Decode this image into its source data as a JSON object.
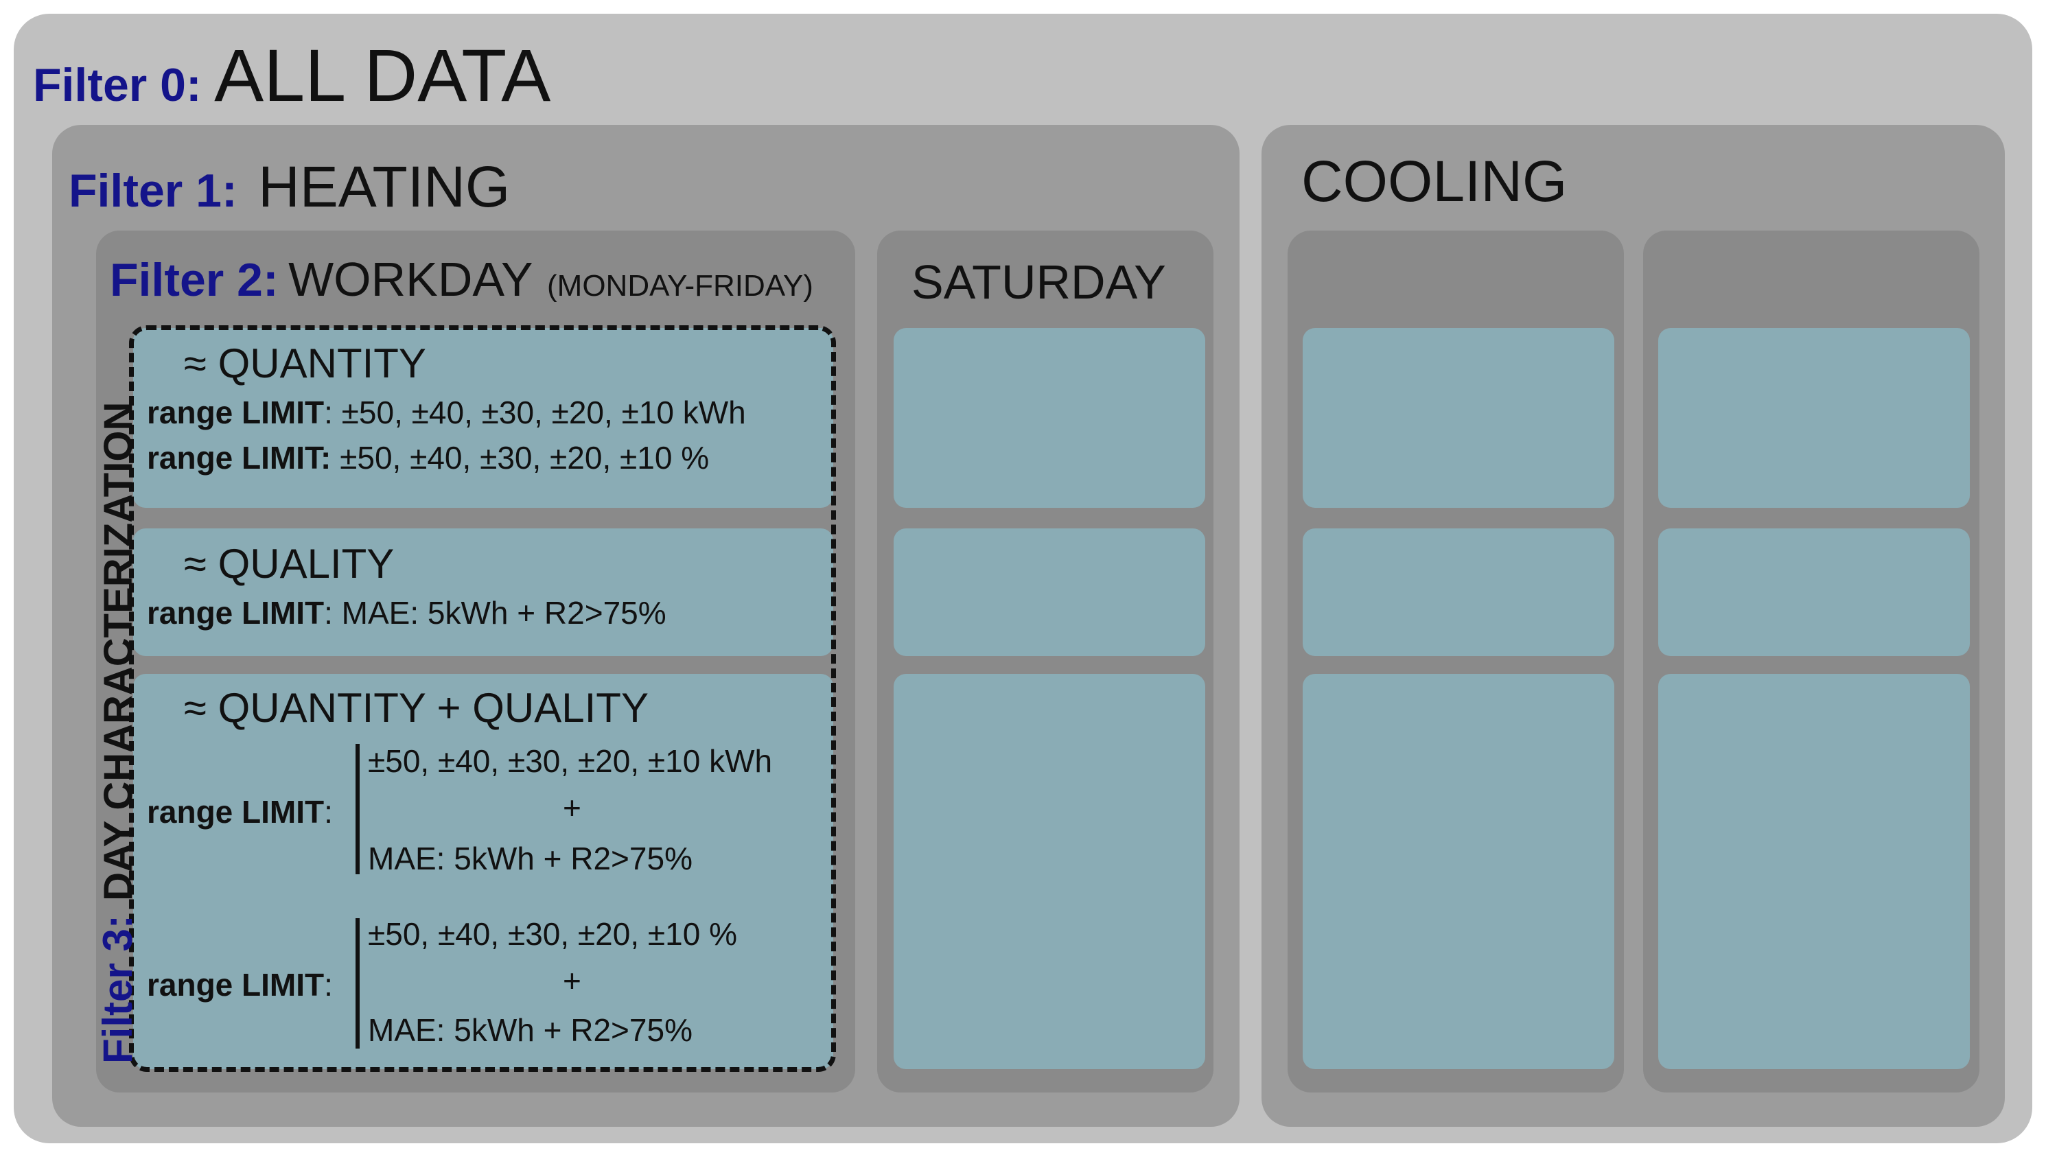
{
  "colors": {
    "outer": "#c0c0c0",
    "level1": "#9c9c9c",
    "level2": "#8a8a8a",
    "cell": "#8aacb5",
    "filter_label": "#14148a"
  },
  "filter0": {
    "label": "Filter 0:",
    "title": "ALL DATA"
  },
  "filter1": {
    "label": "Filter 1:",
    "heating": "HEATING",
    "cooling": "COOLING"
  },
  "filter2": {
    "label": "Filter 2:",
    "workday": "WORKDAY",
    "workday_note": "(MONDAY-FRIDAY)",
    "saturday": "SATURDAY"
  },
  "filter3": {
    "label": "Filter 3:",
    "title": "DAY CHARACTERIZATION"
  },
  "quantity": {
    "title": "≈ QUANTITY",
    "line1_label": "range LIMIT",
    "line1_value": ": ±50, ±40, ±30, ±20, ±10 kWh",
    "line2_label": "range LIMIT:",
    "line2_value": " ±50, ±40, ±30, ±20, ±10 %"
  },
  "quality": {
    "title": "≈ QUALITY",
    "line1_label": "range LIMIT",
    "line1_value": ": MAE: 5kWh + R2>75%"
  },
  "combined": {
    "title": "≈ QUANTITY + QUALITY",
    "group1": {
      "label": "range LIMIT",
      "colon": ":",
      "top": "±50, ±40, ±30, ±20, ±10 kWh",
      "plus": "+",
      "bottom": "MAE: 5kWh + R2>75%"
    },
    "group2": {
      "label": "range LIMIT",
      "colon": ":",
      "top": "±50, ±40, ±30, ±20, ±10 %",
      "plus": "+",
      "bottom": "MAE: 5kWh + R2>75%"
    }
  }
}
